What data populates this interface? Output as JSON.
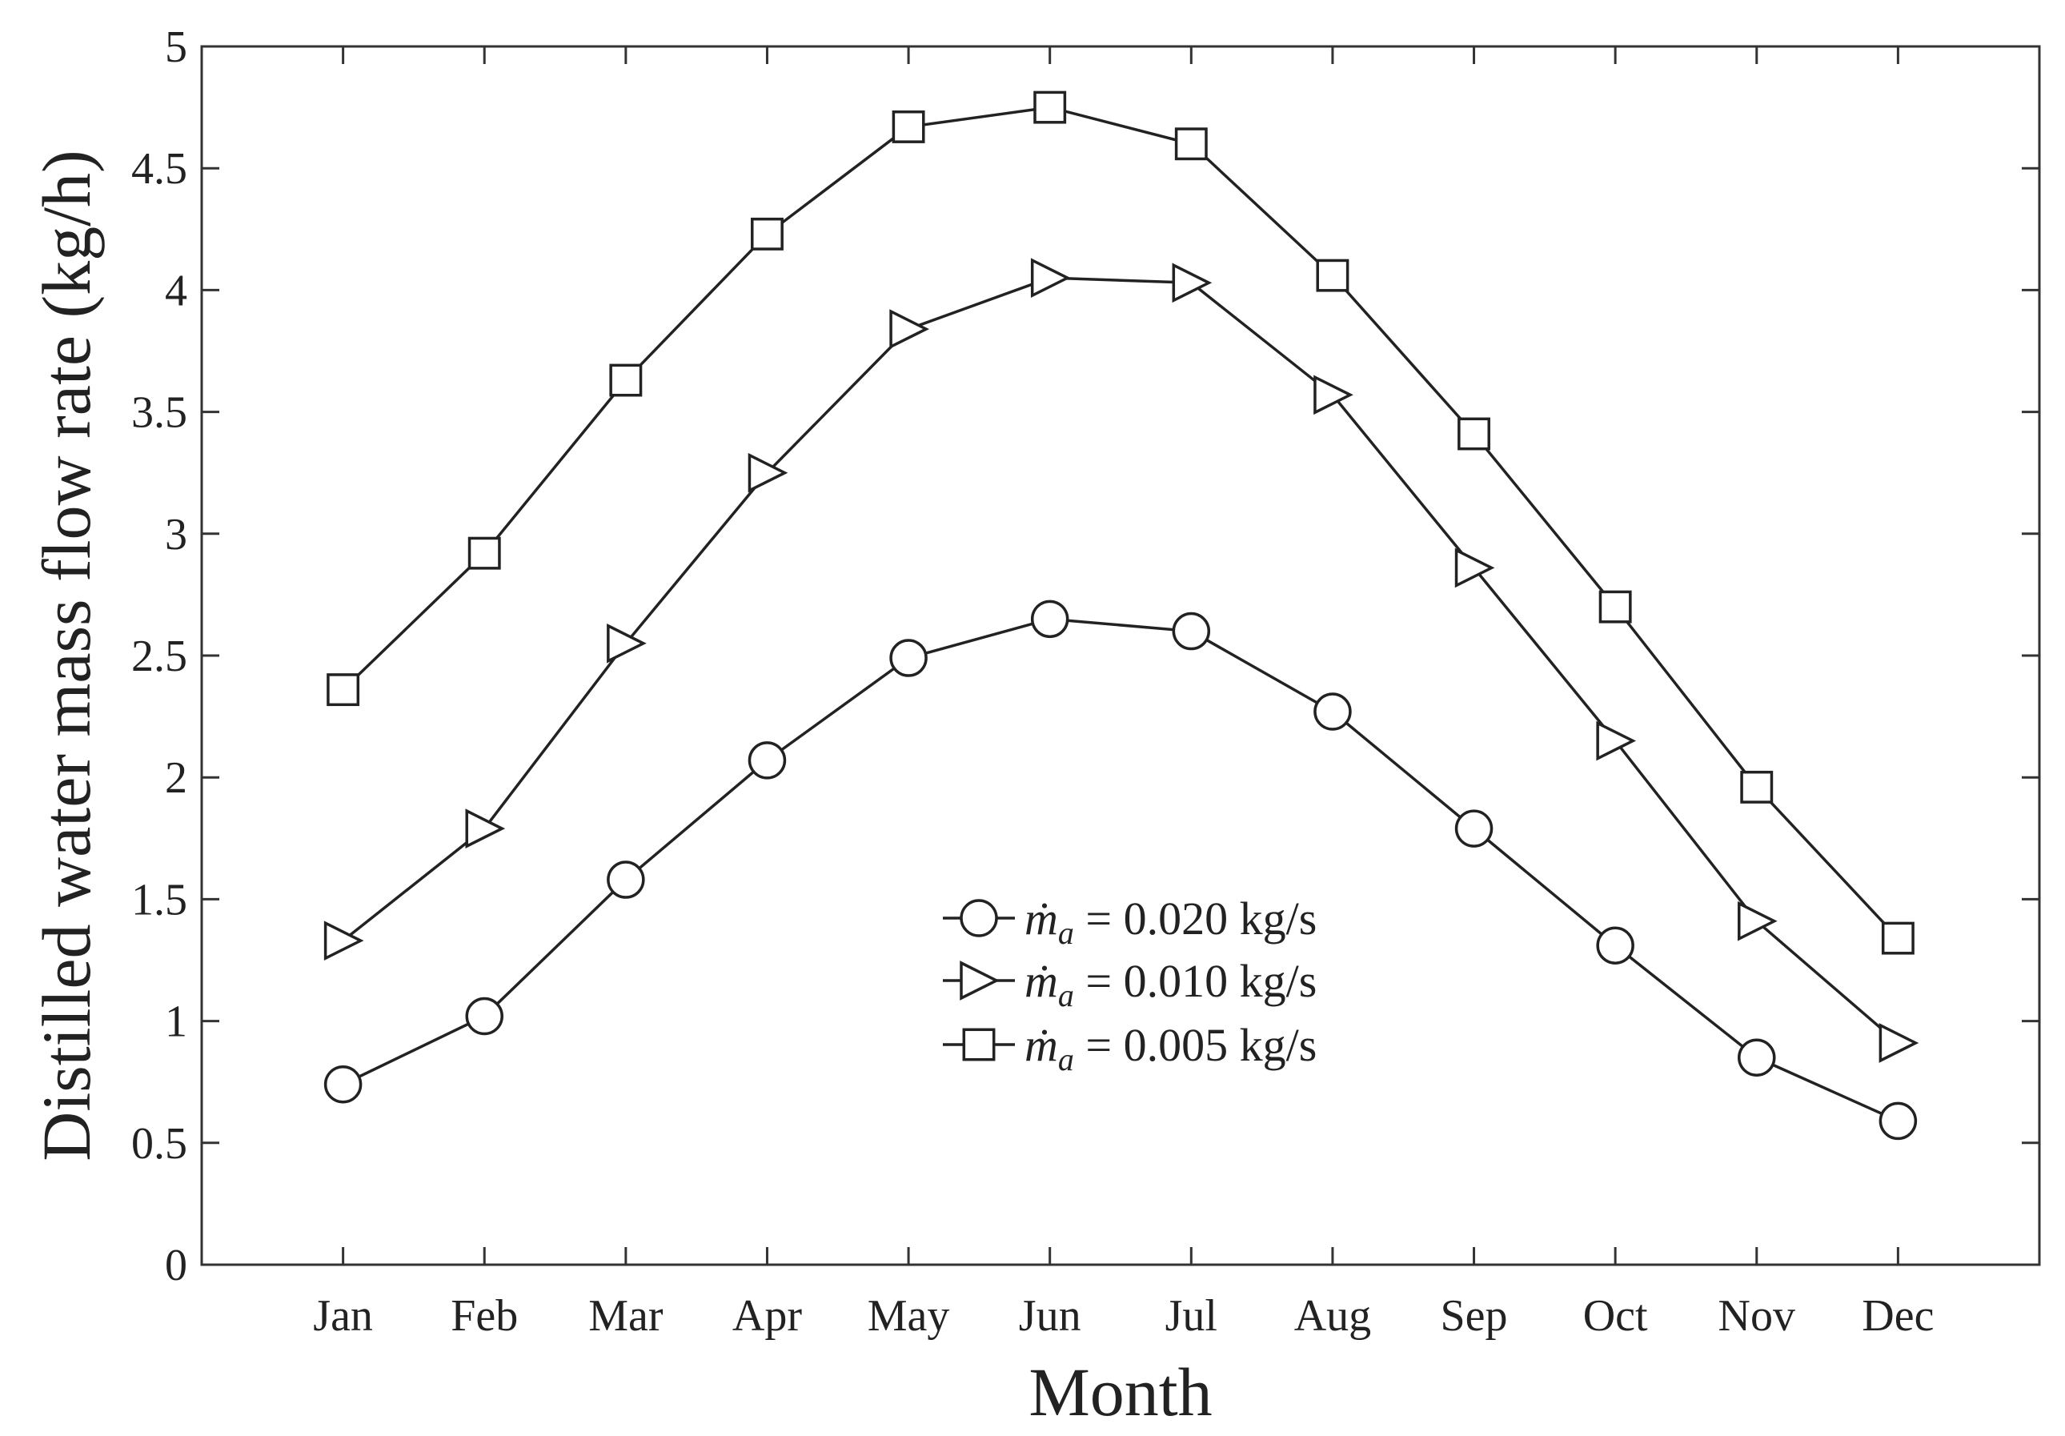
{
  "chart_data": {
    "type": "line",
    "title": "",
    "xlabel": "Month",
    "ylabel": "Distilled water mass flow rate (kg/h)",
    "categories": [
      "Jan",
      "Feb",
      "Mar",
      "Apr",
      "May",
      "Jun",
      "Jul",
      "Aug",
      "Sep",
      "Oct",
      "Nov",
      "Dec"
    ],
    "ylim": [
      0,
      5
    ],
    "yticks": [
      "0",
      "0.5",
      "1",
      "1.5",
      "2",
      "2.5",
      "3",
      "3.5",
      "4",
      "4.5",
      "5"
    ],
    "grid": false,
    "legend_position": "center-right",
    "series": [
      {
        "name": "ṁa = 0.020 kg/s",
        "legend_math": "ṁ",
        "legend_sub": "a",
        "legend_value": " = 0.020 kg/s",
        "marker": "circle",
        "values": [
          0.74,
          1.02,
          1.58,
          2.07,
          2.49,
          2.65,
          2.6,
          2.27,
          1.79,
          1.31,
          0.85,
          0.59
        ]
      },
      {
        "name": "ṁa = 0.010 kg/s",
        "legend_math": "ṁ",
        "legend_sub": "a",
        "legend_value": " = 0.010 kg/s",
        "marker": "triangle-right",
        "values": [
          1.33,
          1.79,
          2.55,
          3.25,
          3.84,
          4.05,
          4.03,
          3.57,
          2.86,
          2.15,
          1.41,
          0.91
        ]
      },
      {
        "name": "ṁa = 0.005 kg/s",
        "legend_math": "ṁ",
        "legend_sub": "a",
        "legend_value": " = 0.005 kg/s",
        "marker": "square",
        "values": [
          2.36,
          2.92,
          3.63,
          4.23,
          4.67,
          4.75,
          4.6,
          4.06,
          3.41,
          2.7,
          1.96,
          1.34
        ]
      }
    ],
    "colors": {
      "line": "#222222",
      "axis": "#333333",
      "background": "#ffffff"
    }
  }
}
